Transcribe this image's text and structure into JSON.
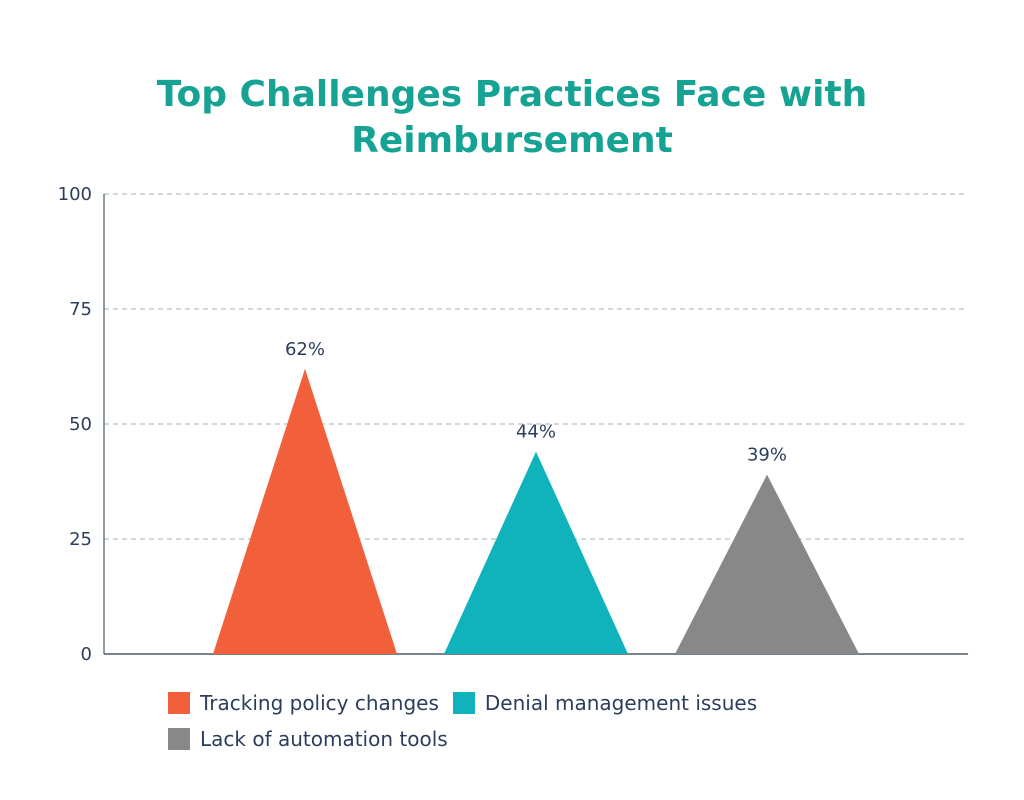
{
  "chart_data": {
    "type": "bar",
    "title": [
      "Top Challenges Practices Face with",
      "Reimbursement"
    ],
    "categories": [
      "Tracking policy changes",
      "Denial management issues",
      "Lack of automation tools"
    ],
    "values": [
      62,
      44,
      39
    ],
    "data_labels": [
      "62%",
      "44%",
      "39%"
    ],
    "colors": [
      "#f2603b",
      "#10b3bb",
      "#888888"
    ],
    "ylim": [
      0,
      100
    ],
    "yticks": [
      0,
      25,
      50,
      75,
      100
    ],
    "grid": true,
    "legend_position": "bottom",
    "bar_shape": "triangle"
  }
}
